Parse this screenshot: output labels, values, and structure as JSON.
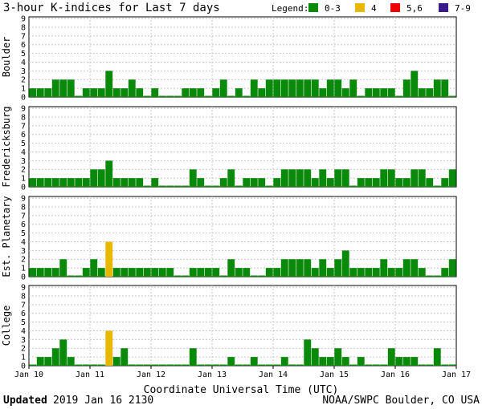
{
  "chart_data": {
    "type": "bar",
    "title": "3-hour K-indices for Last 7 days",
    "legend": {
      "title": "Legend:",
      "placement": "top-right",
      "entries": [
        {
          "label": "0-3",
          "color": "#0a8a0a"
        },
        {
          "label": "4",
          "color": "#e8b800"
        },
        {
          "label": "5,6",
          "color": "#ee0000"
        },
        {
          "label": "7-9",
          "color": "#3a1a8a"
        }
      ]
    },
    "xlabel": "Coordinate Universal Time (UTC)",
    "x_ticks": [
      "Jan 10",
      "Jan 11",
      "Jan 12",
      "Jan 13",
      "Jan 14",
      "Jan 15",
      "Jan 16",
      "Jan 17"
    ],
    "ylim": [
      0,
      9
    ],
    "y_ticks": [
      "0",
      "1",
      "2",
      "3",
      "4",
      "5",
      "6",
      "7",
      "8",
      "9"
    ],
    "bins_per_day": 8,
    "days": 7,
    "panels": [
      {
        "name": "Boulder",
        "values": [
          1,
          1,
          1,
          2,
          2,
          2,
          0,
          1,
          1,
          1,
          3,
          1,
          1,
          2,
          1,
          0,
          1,
          0,
          0,
          0,
          1,
          1,
          1,
          0,
          1,
          2,
          0,
          1,
          0,
          2,
          1,
          2,
          2,
          2,
          2,
          2,
          2,
          2,
          1,
          2,
          2,
          1,
          2,
          0,
          1,
          1,
          1,
          1,
          0,
          2,
          3,
          1,
          1,
          2,
          2,
          0
        ]
      },
      {
        "name": "Fredericksburg",
        "values": [
          1,
          1,
          1,
          1,
          1,
          1,
          1,
          1,
          2,
          2,
          3,
          1,
          1,
          1,
          1,
          0,
          1,
          0,
          0,
          0,
          0,
          2,
          1,
          0,
          0,
          1,
          2,
          0,
          1,
          1,
          1,
          0,
          1,
          2,
          2,
          2,
          2,
          1,
          2,
          1,
          2,
          2,
          0,
          1,
          1,
          1,
          2,
          2,
          1,
          1,
          2,
          2,
          1,
          0,
          1,
          2
        ]
      },
      {
        "name": "Est. Planetary",
        "values": [
          1,
          1,
          1,
          1,
          2,
          0,
          0,
          1,
          2,
          1,
          4,
          1,
          1,
          1,
          1,
          1,
          1,
          1,
          1,
          0,
          0,
          1,
          1,
          1,
          1,
          0,
          2,
          1,
          1,
          0,
          0,
          1,
          1,
          2,
          2,
          2,
          2,
          1,
          2,
          1,
          2,
          3,
          1,
          1,
          1,
          1,
          2,
          1,
          1,
          2,
          2,
          1,
          0,
          0,
          1,
          2
        ]
      },
      {
        "name": "College",
        "values": [
          0,
          1,
          1,
          2,
          3,
          1,
          0,
          0,
          0,
          0,
          4,
          1,
          2,
          0,
          0,
          0,
          0,
          0,
          0,
          0,
          0,
          2,
          0,
          0,
          0,
          0,
          1,
          0,
          0,
          1,
          0,
          0,
          0,
          1,
          0,
          0,
          3,
          2,
          1,
          1,
          2,
          1,
          0,
          1,
          0,
          0,
          0,
          2,
          1,
          1,
          1,
          0,
          0,
          2,
          0,
          0
        ]
      }
    ]
  },
  "footer": {
    "updated_label": "Updated",
    "updated_value": "2019 Jan 16 2130",
    "source": "NOAA/SWPC Boulder, CO USA"
  }
}
